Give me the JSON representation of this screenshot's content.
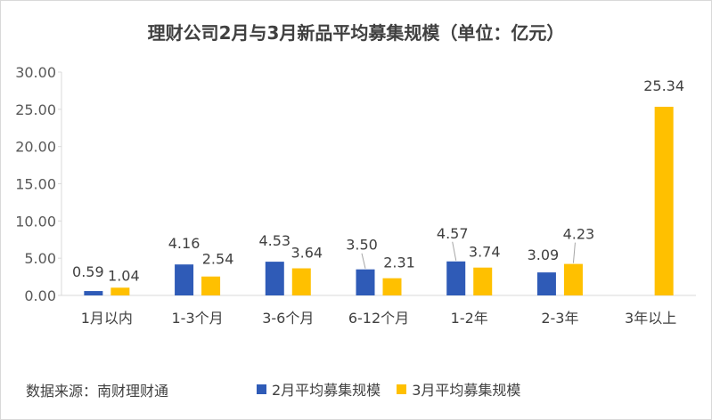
{
  "chart_data": {
    "type": "bar",
    "title": "理财公司2月与3月新品平均募集规模（单位：亿元）",
    "xlabel": "",
    "ylabel": "",
    "categories": [
      "1月以内",
      "1-3个月",
      "3-6个月",
      "6-12个月",
      "1-2年",
      "2-3年",
      "3年以上"
    ],
    "series": [
      {
        "name": "2月平均募集规模",
        "color": "#2f5bb7",
        "values": [
          0.59,
          4.16,
          4.53,
          3.5,
          4.57,
          3.09,
          null
        ],
        "labels": [
          "0.59",
          "4.16",
          "4.53",
          "3.50",
          "4.57",
          "3.09",
          ""
        ]
      },
      {
        "name": "3月平均募集规模",
        "color": "#ffc000",
        "values": [
          1.04,
          2.54,
          3.64,
          2.31,
          3.74,
          4.23,
          25.34
        ],
        "labels": [
          "1.04",
          "2.54",
          "3.64",
          "2.31",
          "3.74",
          "4.23",
          "25.34"
        ]
      }
    ],
    "ylim": [
      0,
      30
    ],
    "yticks": [
      "0.00",
      "5.00",
      "10.00",
      "15.00",
      "20.00",
      "25.00",
      "30.00"
    ],
    "grid": false,
    "legend": "bottom"
  },
  "source_note": "数据来源：南财理财通"
}
